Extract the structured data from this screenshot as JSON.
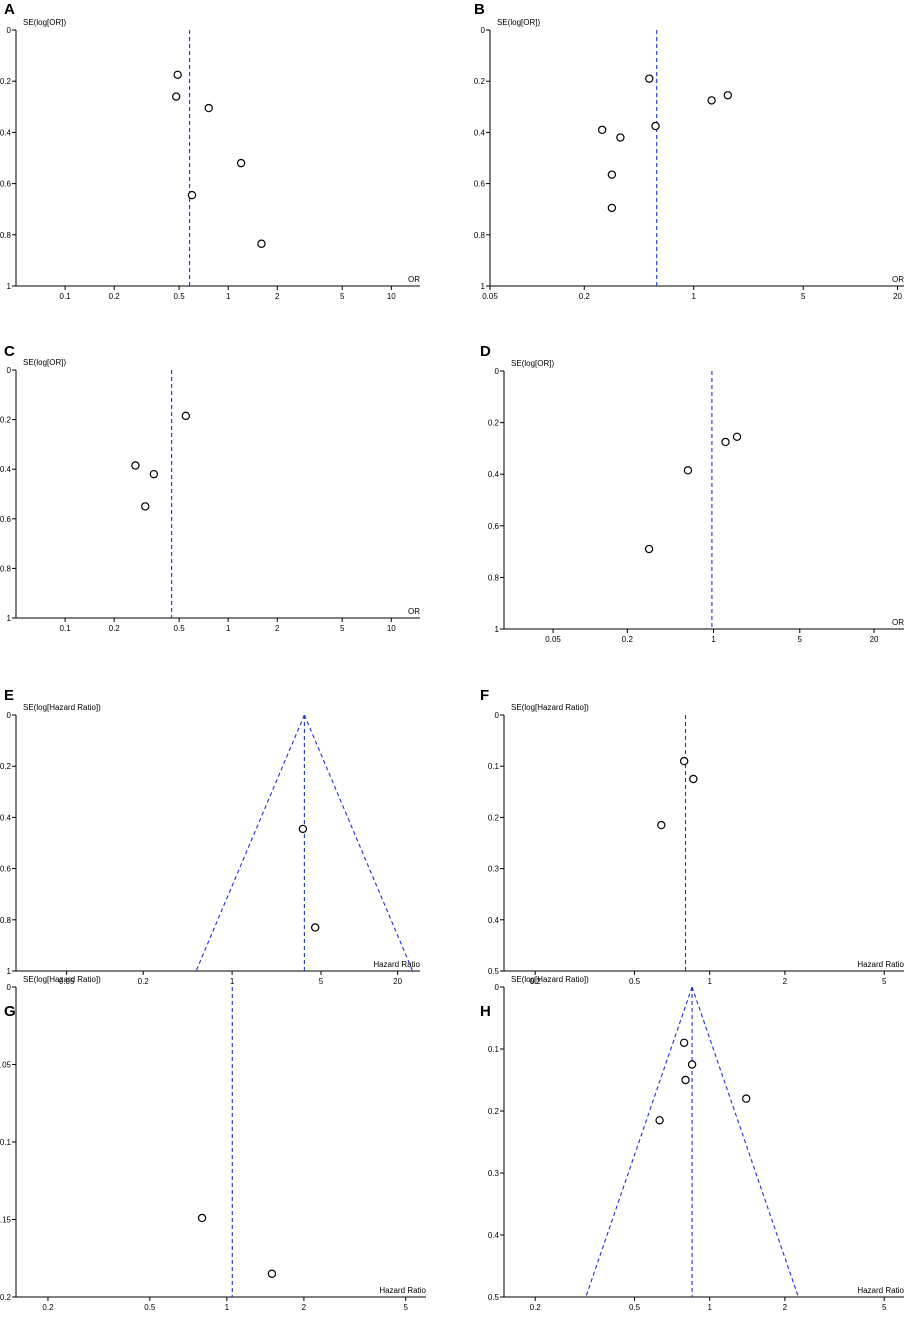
{
  "chart_data": [
    {
      "panel": "A",
      "type": "scatter",
      "ylabel": "SE(log[OR])",
      "xlabel": "OR",
      "x_scale": "log",
      "xlim": [
        0.05,
        15
      ],
      "ylim": [
        0,
        1
      ],
      "x_ticks": [
        0.1,
        0.2,
        0.5,
        1,
        2,
        5,
        10
      ],
      "y_ticks": [
        0,
        0.2,
        0.4,
        0.6,
        0.8,
        1
      ],
      "reference_line": 0.58,
      "funnel": false,
      "points": [
        [
          0.49,
          0.175
        ],
        [
          0.48,
          0.26
        ],
        [
          0.76,
          0.305
        ],
        [
          1.2,
          0.52
        ],
        [
          0.6,
          0.645
        ],
        [
          1.6,
          0.835
        ]
      ]
    },
    {
      "panel": "B",
      "type": "scatter",
      "ylabel": "SE(log[OR])",
      "xlabel": "OR",
      "x_scale": "log",
      "xlim": [
        0.05,
        22
      ],
      "ylim": [
        0,
        1
      ],
      "x_ticks": [
        0.05,
        0.2,
        1,
        5,
        20
      ],
      "y_ticks": [
        0,
        0.2,
        0.4,
        0.6,
        0.8,
        1
      ],
      "reference_line": 0.58,
      "funnel": false,
      "points": [
        [
          0.52,
          0.19
        ],
        [
          1.65,
          0.255
        ],
        [
          1.3,
          0.275
        ],
        [
          0.57,
          0.375
        ],
        [
          0.26,
          0.39
        ],
        [
          0.34,
          0.42
        ],
        [
          0.3,
          0.565
        ],
        [
          0.3,
          0.695
        ]
      ]
    },
    {
      "panel": "C",
      "type": "scatter",
      "ylabel": "SE(log[OR])",
      "xlabel": "OR",
      "x_scale": "log",
      "xlim": [
        0.05,
        15
      ],
      "ylim": [
        0,
        1
      ],
      "x_ticks": [
        0.1,
        0.2,
        0.5,
        1,
        2,
        5,
        10
      ],
      "y_ticks": [
        0,
        0.2,
        0.4,
        0.6,
        0.8,
        1
      ],
      "reference_line": 0.45,
      "funnel": false,
      "points": [
        [
          0.55,
          0.185
        ],
        [
          0.27,
          0.385
        ],
        [
          0.35,
          0.42
        ],
        [
          0.31,
          0.55
        ]
      ]
    },
    {
      "panel": "D",
      "type": "scatter",
      "ylabel": "SE(log[OR])",
      "xlabel": "OR",
      "x_scale": "log",
      "xlim": [
        0.02,
        35
      ],
      "ylim": [
        0,
        1
      ],
      "x_ticks": [
        0.05,
        0.2,
        1,
        5,
        20
      ],
      "y_ticks": [
        0,
        0.2,
        0.4,
        0.6,
        0.8,
        1
      ],
      "reference_line": 0.97,
      "funnel": false,
      "points": [
        [
          1.55,
          0.255
        ],
        [
          1.25,
          0.275
        ],
        [
          0.62,
          0.385
        ],
        [
          0.3,
          0.69
        ]
      ]
    },
    {
      "panel": "E",
      "type": "scatter",
      "ylabel": "SE(log[Hazard Ratio])",
      "xlabel": "Hazard Ratio",
      "x_scale": "log",
      "xlim": [
        0.02,
        30
      ],
      "ylim": [
        0,
        1
      ],
      "x_ticks": [
        0.05,
        0.2,
        1,
        5,
        20
      ],
      "y_ticks": [
        0,
        0.2,
        0.4,
        0.6,
        0.8,
        1
      ],
      "reference_line": 3.7,
      "funnel": true,
      "points": [
        [
          3.6,
          0.445
        ],
        [
          4.5,
          0.83
        ]
      ]
    },
    {
      "panel": "F",
      "type": "scatter",
      "ylabel": "SE(log[Hazard Ratio])",
      "xlabel": "Hazard Ratio",
      "x_scale": "log",
      "xlim": [
        0.15,
        6
      ],
      "ylim": [
        0,
        0.5
      ],
      "x_ticks": [
        0.2,
        0.5,
        1,
        2,
        5
      ],
      "y_ticks": [
        0,
        0.1,
        0.2,
        0.3,
        0.4,
        0.5
      ],
      "reference_line": 0.8,
      "funnel": false,
      "points": [
        [
          0.79,
          0.09
        ],
        [
          0.86,
          0.125
        ],
        [
          0.64,
          0.215
        ]
      ]
    },
    {
      "panel": "G",
      "type": "scatter",
      "ylabel": "SE(log[Hazard Ratio])",
      "xlabel": "Hazard Ratio",
      "x_scale": "log",
      "xlim": [
        0.15,
        6
      ],
      "ylim": [
        0,
        0.2
      ],
      "x_ticks": [
        0.2,
        0.5,
        1,
        2,
        5
      ],
      "y_ticks": [
        0,
        0.05,
        0.1,
        0.15,
        0.2
      ],
      "reference_line": 1.05,
      "funnel": false,
      "points": [
        [
          0.8,
          0.149
        ],
        [
          1.5,
          0.185
        ]
      ]
    },
    {
      "panel": "H",
      "type": "scatter",
      "ylabel": "SE(log[Hazard Ratio])",
      "xlabel": "Hazard Ratio",
      "x_scale": "log",
      "xlim": [
        0.15,
        6
      ],
      "ylim": [
        0,
        0.5
      ],
      "x_ticks": [
        0.2,
        0.5,
        1,
        2,
        5
      ],
      "y_ticks": [
        0,
        0.1,
        0.2,
        0.3,
        0.4,
        0.5
      ],
      "reference_line": 0.85,
      "funnel": true,
      "points": [
        [
          0.79,
          0.09
        ],
        [
          0.85,
          0.125
        ],
        [
          0.8,
          0.15
        ],
        [
          1.4,
          0.18
        ],
        [
          0.63,
          0.215
        ]
      ]
    }
  ]
}
